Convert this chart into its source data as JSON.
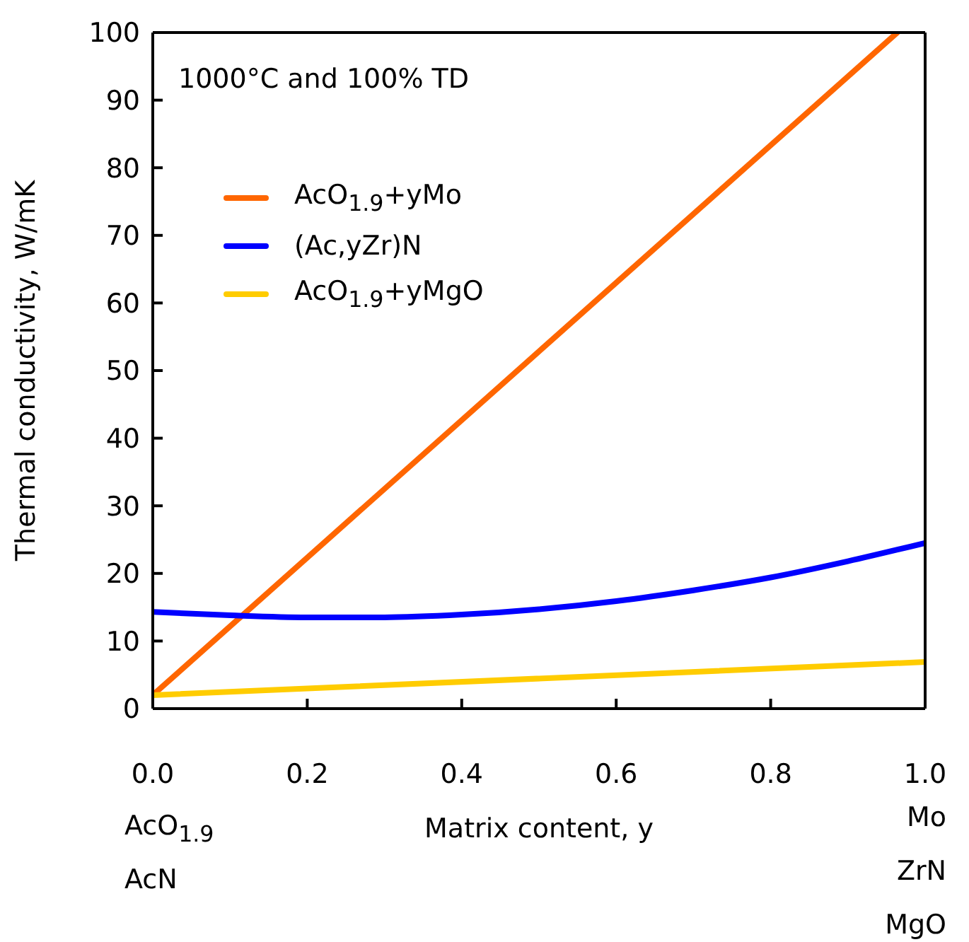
{
  "chart_data": {
    "type": "line",
    "xlabel": "Matrix content, y",
    "ylabel": "Thermal conductivity, W/mK",
    "xlim": [
      0,
      1
    ],
    "ylim": [
      0,
      100
    ],
    "xticks": [
      {
        "value": 0,
        "label": "0.0"
      },
      {
        "value": 0.2,
        "label": "0.2"
      },
      {
        "value": 0.4,
        "label": "0.4"
      },
      {
        "value": 0.6,
        "label": "0.6"
      },
      {
        "value": 0.8,
        "label": "0.8"
      },
      {
        "value": 1,
        "label": "1.0"
      }
    ],
    "yticks": [
      0,
      10,
      20,
      30,
      40,
      50,
      60,
      70,
      80,
      90,
      100
    ],
    "legend": "top left",
    "series": [
      {
        "name": "AcO$_{1.9}$+yMo",
        "color": "#ff6600",
        "x": [
          0,
          0.964
        ],
        "values": [
          2,
          100
        ]
      },
      {
        "name": "(Ac,yZr)N",
        "color": "#0000ff",
        "x": [
          0,
          0.1,
          0.2,
          0.3,
          0.4,
          0.5,
          0.6,
          0.7,
          0.8,
          0.9,
          1
        ],
        "values": [
          14.3,
          13.8,
          13.5,
          13.5,
          13.9,
          14.7,
          15.9,
          17.5,
          19.4,
          21.8,
          24.5
        ]
      },
      {
        "name": "AcO$_{1.9}$+yMgO",
        "color": "#ffcc00",
        "x": [
          0,
          1
        ],
        "values": [
          2,
          6.9
        ]
      }
    ],
    "annotations": [
      "1000°C and 100% TD",
      "AcO$_{1.9}$",
      "AcN",
      "Mo",
      "ZrN",
      "MgO"
    ]
  }
}
